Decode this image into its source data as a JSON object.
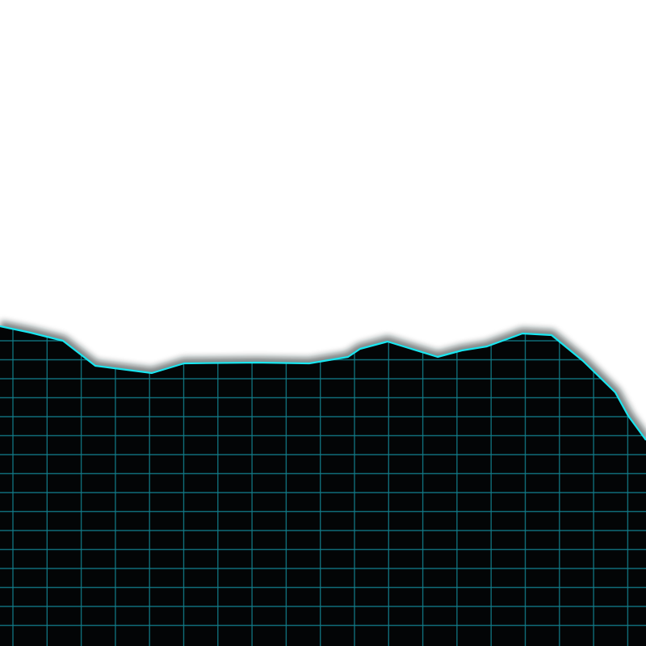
{
  "scene": {
    "description_free": true,
    "colors": {
      "sky": "#ffffff",
      "terrain_fill": "#030506",
      "grid_line": "#137f8c",
      "ridge_line": "#19e6f0",
      "ridge_glow": "#0b1a1d"
    },
    "grid": {
      "columns": 19,
      "rows": 16
    }
  }
}
